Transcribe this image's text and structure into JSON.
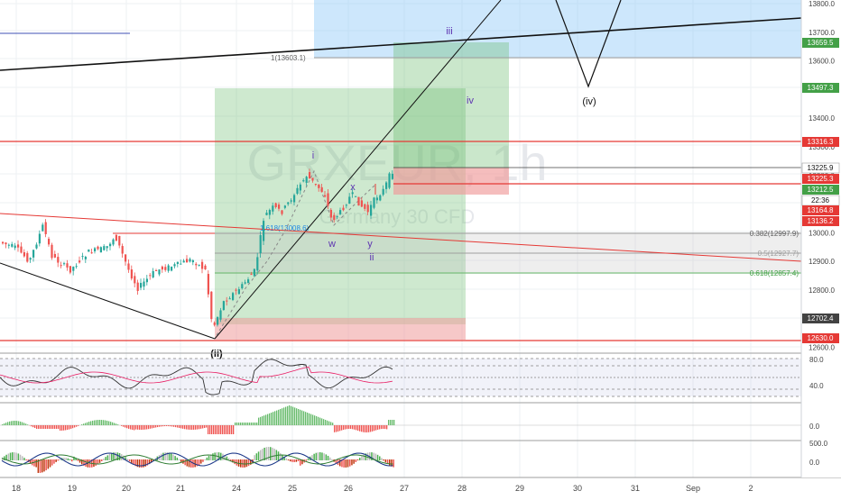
{
  "watermark": {
    "symbol": "GRXEUR, 1h",
    "name": "Germany 30 CFD"
  },
  "colors": {
    "up": "#26a69a",
    "down": "#ef5350",
    "grid": "#eceff2",
    "resistance": "#e53935",
    "green_zone": "#4caf50",
    "red_zone": "#ef9a9a",
    "blue_zone": "#90caf9",
    "wave": "#5e35b1",
    "fib": "#9e9e9e"
  },
  "price_axis": {
    "ticks": [
      "13800.0",
      "13700.0",
      "13600.0",
      "13500.0",
      "13400.0",
      "13300.0",
      "13200.0",
      "13100.0",
      "13000.0",
      "12900.0",
      "12800.0",
      "12700.0",
      "12600.0"
    ],
    "badges": [
      {
        "label": "13659.5",
        "color": "#43a047"
      },
      {
        "label": "13497.3",
        "color": "#43a047"
      },
      {
        "label": "13316.3",
        "color": "#e53935"
      },
      {
        "label": "13225.9",
        "color": "#ffffff"
      },
      {
        "label": "13225.3",
        "color": "#e53935"
      },
      {
        "label": "13212.5",
        "color": "#43a047"
      },
      {
        "label": "22:36",
        "color": "#ffffff"
      },
      {
        "label": "13164.8",
        "color": "#e53935"
      },
      {
        "label": "13136.2",
        "color": "#e53935"
      },
      {
        "label": "12702.4",
        "color": "#424242"
      },
      {
        "label": "12630.0",
        "color": "#e53935"
      }
    ]
  },
  "time_axis": [
    "18",
    "19",
    "20",
    "21",
    "24",
    "25",
    "26",
    "27",
    "28",
    "29",
    "30",
    "31",
    "Sep",
    "2"
  ],
  "wave_labels": [
    "iii",
    "iv",
    "(iv)",
    "i",
    "x",
    "w",
    "y",
    "ii",
    "(ii)"
  ],
  "fib_labels": [
    "0.382(12997.9)",
    "0.5(12927.7)",
    "0.618(12857.4)",
    "1.618(13008.6)",
    "1(13603.1)"
  ],
  "indicators": {
    "rsi_ticks": [
      "80.0",
      "40.0"
    ],
    "macd_ticks": [
      "0.0"
    ],
    "osc_ticks": [
      "500.0",
      "0.0"
    ]
  }
}
